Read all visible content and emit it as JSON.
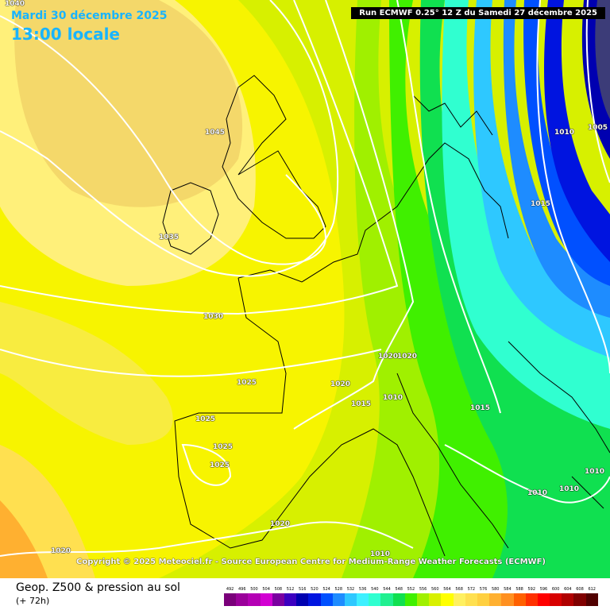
{
  "header": {
    "date": "Mardi 30 décembre 2025",
    "time": "13:00 locale",
    "run": "Run ECMWF 0.25° 12 Z du Samedi 27 décembre 2025",
    "corner_value": "1040"
  },
  "copyright": "Copyright © 2025 Meteociel.fr - Source European Centre for Medium-Range Weather Forecasts (ECMWF)",
  "footer": {
    "title": "Geop. Z500 & pression au sol",
    "subtitle": "(+ 72h)"
  },
  "isobar_labels": [
    "1040",
    "1045",
    "1035",
    "1030",
    "1025",
    "1025",
    "1025",
    "1025",
    "1020",
    "1020",
    "1020",
    "1020",
    "1015",
    "1010",
    "1020",
    "1015",
    "1010",
    "1010",
    "1010",
    "1015",
    "1010",
    "1010",
    "1005"
  ],
  "scale": {
    "labels": [
      "492",
      "496",
      "500",
      "504",
      "508",
      "512",
      "516",
      "520",
      "524",
      "528",
      "532",
      "536",
      "540",
      "544",
      "548",
      "552",
      "556",
      "560",
      "564",
      "568",
      "572",
      "576",
      "580",
      "584",
      "588",
      "592",
      "596",
      "600",
      "604",
      "608",
      "612"
    ],
    "colors": [
      "#7a007a",
      "#9a009a",
      "#b400b4",
      "#d200d2",
      "#7a00a0",
      "#3c00c0",
      "#0000b0",
      "#0014e0",
      "#0050ff",
      "#1e8cff",
      "#2ec8ff",
      "#3ef0ff",
      "#30ffd0",
      "#20f090",
      "#10e050",
      "#40f000",
      "#a0f000",
      "#d8f000",
      "#ffff00",
      "#fff060",
      "#ffe050",
      "#ffd040",
      "#ffb030",
      "#ff9020",
      "#ff6000",
      "#ff3000",
      "#ff0000",
      "#d80000",
      "#b00000",
      "#800000",
      "#500000"
    ]
  }
}
